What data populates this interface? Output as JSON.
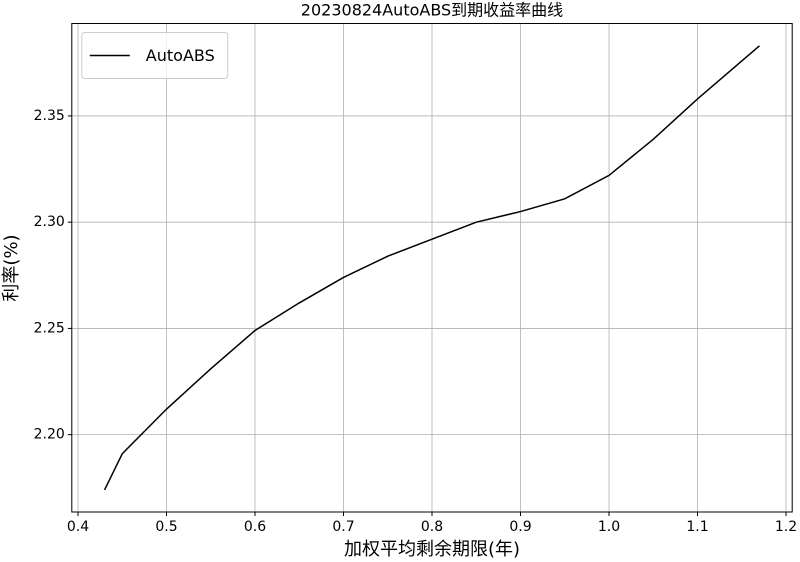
{
  "chart_data": {
    "type": "line",
    "title": "20230824AutoABS到期收益率曲线",
    "x_label": "加权平均剩余期限(年)",
    "y_label": "利率(%)",
    "x": [
      0.43,
      0.45,
      0.5,
      0.55,
      0.6,
      0.65,
      0.7,
      0.75,
      0.8,
      0.85,
      0.9,
      0.95,
      1.0,
      1.05,
      1.1,
      1.17
    ],
    "series": [
      {
        "name": "AutoABS",
        "color": "#000000",
        "values": [
          2.174,
          2.191,
          2.212,
          2.231,
          2.249,
          2.262,
          2.274,
          2.284,
          2.292,
          2.3,
          2.305,
          2.311,
          2.322,
          2.339,
          2.358,
          2.383
        ]
      }
    ],
    "xlim": [
      0.393,
      1.207
    ],
    "ylim": [
      2.1636,
      2.3935
    ],
    "xticks": [
      0.4,
      0.5,
      0.6,
      0.7,
      0.8,
      0.9,
      {
        "value": 1.0,
        "label": "1.0"
      },
      1.1,
      1.2
    ],
    "yticks": [
      {
        "value": 2.2,
        "label": "2.20"
      },
      2.25,
      {
        "value": 2.3,
        "label": "2.30"
      },
      2.35
    ],
    "grid": true,
    "legend": "upper left"
  }
}
